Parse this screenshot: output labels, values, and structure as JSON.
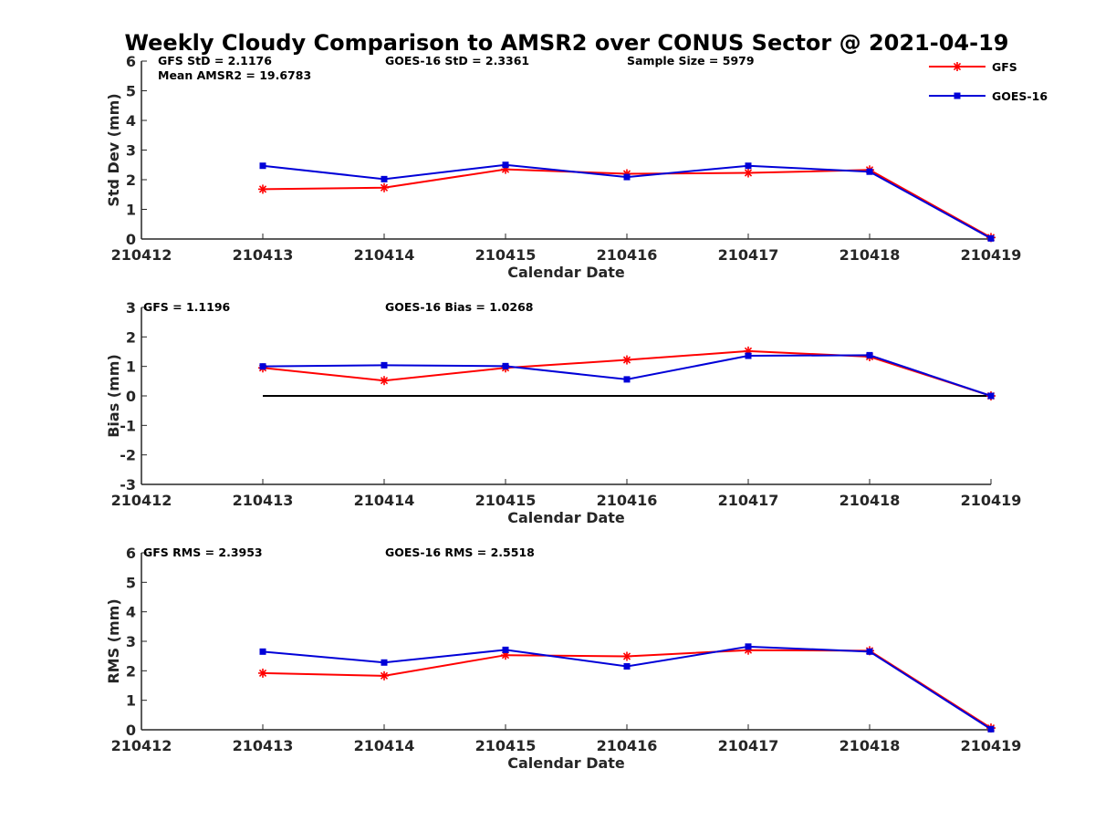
{
  "figure": {
    "title": "Weekly Cloudy Comparison to AMSR2 over CONUS Sector @ 2021-04-19"
  },
  "legend": {
    "placement": "top-right",
    "items": [
      {
        "label": "GFS",
        "color": "#ff0000",
        "marker": "asterisk"
      },
      {
        "label": "GOES-16",
        "color": "#0000d8",
        "marker": "square"
      }
    ]
  },
  "chart_data": [
    {
      "type": "line",
      "xlabel": "Calendar Date",
      "ylabel": "Std Dev (mm)",
      "ylim": [
        0,
        6
      ],
      "yticks": [
        "0",
        "1",
        "2",
        "3",
        "4",
        "5",
        "6"
      ],
      "categories": [
        "210412",
        "210413",
        "210414",
        "210415",
        "210416",
        "210417",
        "210418",
        "210419"
      ],
      "zero_line": false,
      "series": [
        {
          "name": "GFS",
          "color": "#ff0000",
          "marker": "asterisk",
          "values": [
            null,
            1.68,
            1.73,
            2.35,
            2.2,
            2.23,
            2.33,
            0.05
          ]
        },
        {
          "name": "GOES-16",
          "color": "#0000d8",
          "marker": "square",
          "values": [
            null,
            2.47,
            2.02,
            2.5,
            2.09,
            2.47,
            2.27,
            0.02
          ]
        }
      ],
      "annotations": [
        {
          "text": "GFS StD = 2.1176",
          "row": 0,
          "col": "left"
        },
        {
          "text": "Mean AMSR2 = 19.6783",
          "row": 1,
          "col": "left"
        },
        {
          "text": "GOES-16 StD = 2.3361",
          "row": 0,
          "col": "mid"
        },
        {
          "text": "Sample Size = 5979",
          "row": 0,
          "col": "right"
        }
      ]
    },
    {
      "type": "line",
      "xlabel": "Calendar Date",
      "ylabel": "Bias (mm)",
      "ylim": [
        -3,
        3
      ],
      "yticks": [
        "-3",
        "-2",
        "-1",
        "0",
        "1",
        "2",
        "3"
      ],
      "categories": [
        "210412",
        "210413",
        "210414",
        "210415",
        "210416",
        "210417",
        "210418",
        "210419"
      ],
      "zero_line": true,
      "series": [
        {
          "name": "GFS",
          "color": "#ff0000",
          "marker": "asterisk",
          "values": [
            null,
            0.95,
            0.52,
            0.95,
            1.22,
            1.52,
            1.33,
            0.0
          ]
        },
        {
          "name": "GOES-16",
          "color": "#0000d8",
          "marker": "square",
          "values": [
            null,
            1.0,
            1.04,
            1.01,
            0.56,
            1.36,
            1.38,
            0.0
          ]
        }
      ],
      "annotations": [
        {
          "text": "GFS = 1.1196",
          "row": 0,
          "col": "left0"
        },
        {
          "text": "GOES-16 Bias  = 1.0268",
          "row": 0,
          "col": "mid"
        }
      ]
    },
    {
      "type": "line",
      "xlabel": "Calendar Date",
      "ylabel": "RMS (mm)",
      "ylim": [
        0,
        6
      ],
      "yticks": [
        "0",
        "1",
        "2",
        "3",
        "4",
        "5",
        "6"
      ],
      "categories": [
        "210412",
        "210413",
        "210414",
        "210415",
        "210416",
        "210417",
        "210418",
        "210419"
      ],
      "zero_line": false,
      "series": [
        {
          "name": "GFS",
          "color": "#ff0000",
          "marker": "asterisk",
          "values": [
            null,
            1.92,
            1.83,
            2.53,
            2.49,
            2.7,
            2.68,
            0.06
          ]
        },
        {
          "name": "GOES-16",
          "color": "#0000d8",
          "marker": "square",
          "values": [
            null,
            2.65,
            2.28,
            2.71,
            2.15,
            2.82,
            2.65,
            0.02
          ]
        }
      ],
      "annotations": [
        {
          "text": "GFS RMS = 2.3953",
          "row": 0,
          "col": "left0"
        },
        {
          "text": "GOES-16 RMS = 2.5518",
          "row": 0,
          "col": "mid"
        }
      ]
    }
  ]
}
